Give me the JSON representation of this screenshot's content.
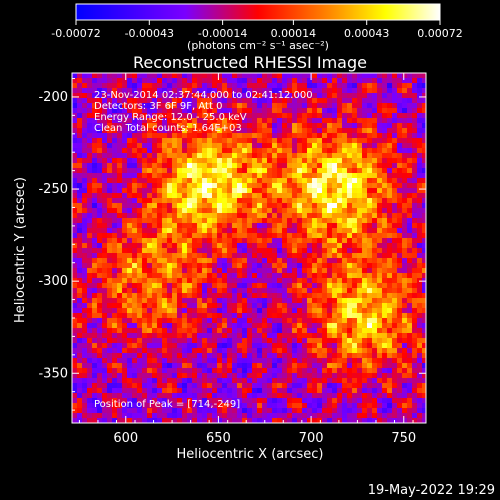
{
  "chart_data": {
    "type": "heatmap",
    "title": "Reconstructed RHESSI Image",
    "xlabel": "Heliocentric X (arcsec)",
    "ylabel": "Heliocentric Y (arcsec)",
    "xlim": [
      571,
      762
    ],
    "ylim": [
      -377,
      -187
    ],
    "xticks": [
      600,
      650,
      700,
      750
    ],
    "yticks": [
      -200,
      -250,
      -300,
      -350
    ],
    "colorbar": {
      "ticks": [
        "-0.00072",
        "-0.00043",
        "-0.00014",
        "0.00014",
        "0.00043",
        "0.00072"
      ],
      "range": [
        -0.00072,
        0.00072
      ],
      "unit_label": "(photons cm⁻² s⁻¹ asec⁻²)",
      "colormap": [
        "#0000ff",
        "#7a00ff",
        "#ff0000",
        "#ff8a00",
        "#ffff00",
        "#ffffff"
      ]
    },
    "annotations": {
      "time": "23-Nov-2014 02:37:44.000 to 02:41:12.000",
      "detectors": "Detectors: 3F 6F 9F, Att 0",
      "energy": "Energy Range: 12.0 - 25.0 keV",
      "method": "Clean    Total counts: 1.64E+03",
      "peak": "Position of Peak = [714,-249]"
    },
    "sources": [
      {
        "x": 645,
        "y": -245,
        "peak": 0.00072
      },
      {
        "x": 714,
        "y": -249,
        "peak": 0.00072
      },
      {
        "x": 728,
        "y": -318,
        "peak": 0.0006
      },
      {
        "x": 612,
        "y": -300,
        "peak": 0.00045
      }
    ],
    "peak_position": [
      714,
      -249
    ]
  },
  "footer": {
    "timestamp": "19-May-2022 19:29"
  }
}
